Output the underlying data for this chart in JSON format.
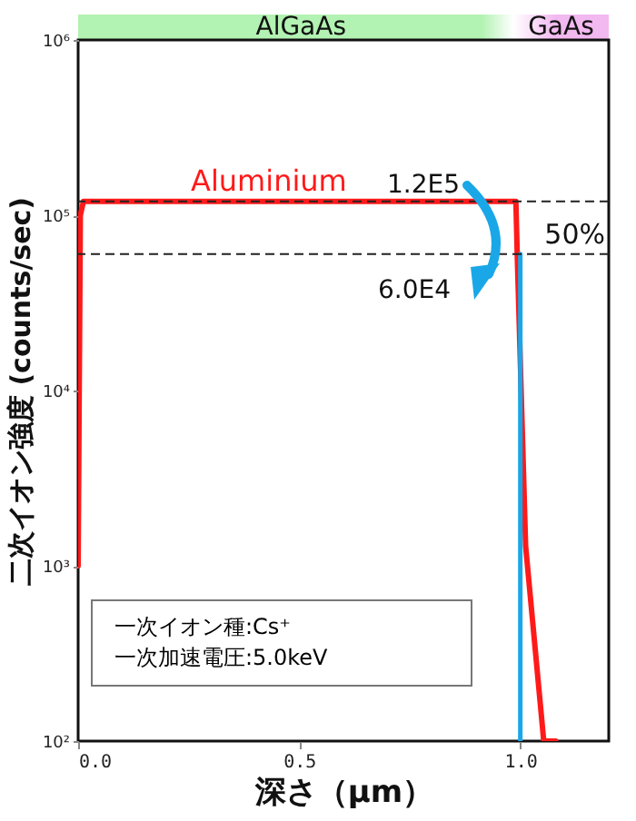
{
  "chart_data": {
    "type": "line",
    "xlabel": "深さ（μm）",
    "ylabel": "二次イオン強度 (counts/sec)",
    "log": "y",
    "xlim": [
      0,
      1.2
    ],
    "xticks": [
      {
        "value": 0,
        "label": "0.0"
      },
      {
        "value": 0.5,
        "label": "0.5"
      },
      {
        "value": 1,
        "label": "1.0"
      }
    ],
    "ylim": [
      100,
      1000000
    ],
    "yticks": [
      {
        "value": 100,
        "label": "10²"
      },
      {
        "value": 1000,
        "label": "10³"
      },
      {
        "value": 10000,
        "label": "10⁴"
      },
      {
        "value": 100000,
        "label": "10⁵"
      },
      {
        "value": 1000000,
        "label": "10⁶"
      }
    ],
    "grid": false,
    "marker": "none",
    "line_style": "solid",
    "series": [
      {
        "name": "Aluminium",
        "color": "#ff1a1a",
        "x": [
          0,
          0.005,
          0.012,
          0.98,
          0.99,
          0.993,
          1.003,
          1.012,
          1.053,
          1.08
        ],
        "values": [
          1000,
          100000,
          120000,
          120000,
          120000,
          60000,
          8000,
          1300,
          100,
          100
        ]
      },
      {
        "color": "#1aa7e8",
        "x": [
          1,
          1
        ],
        "values": [
          60000,
          100
        ]
      }
    ],
    "ref_lines": [
      {
        "axis": "y",
        "value": 120000,
        "label": "1.2E5",
        "line_style": "dashed"
      },
      {
        "axis": "y",
        "value": 60000,
        "label": "6.0E4",
        "line_style": "dashed"
      }
    ],
    "annotations": [
      "50%",
      "一次イオン種:Cs⁺",
      "一次加速電圧:5.0keV",
      "AlGaAs",
      "GaAs"
    ]
  }
}
